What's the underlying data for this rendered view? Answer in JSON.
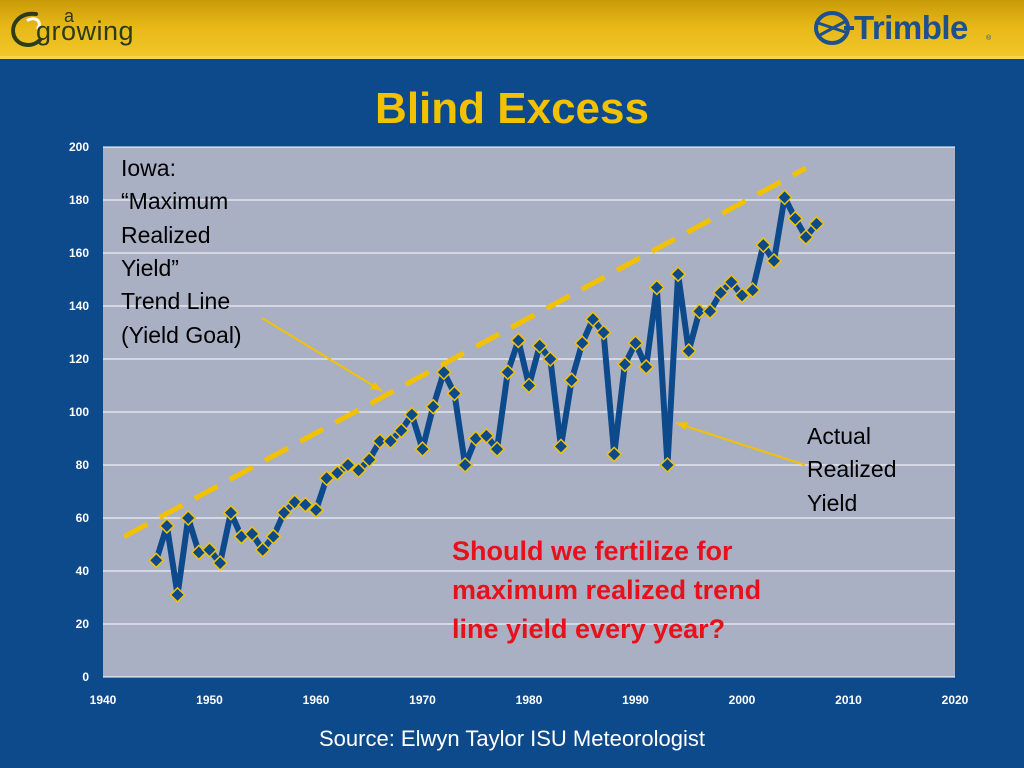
{
  "logos": {
    "left_a": "a",
    "left_word": "growing",
    "right_word": "Trimble",
    "right_reg": "®",
    "left_icon": "swirl-logo-icon",
    "right_icon": "globe-logo-icon"
  },
  "title": "Blind Excess",
  "source": "Source: Elwyn Taylor ISU Meteorologist",
  "annotations": {
    "trend_lines": [
      "Iowa:",
      "“Maximum",
      "Realized",
      "Yield”",
      "Trend Line",
      "(Yield Goal)"
    ],
    "actual_lines": [
      "Actual",
      "Realized",
      "Yield"
    ],
    "question_lines": [
      "Should we fertilize for",
      "maximum realized trend",
      "line yield every year?"
    ]
  },
  "colors": {
    "background": "#0d4a8c",
    "plot_area": "#aab0c4",
    "series_line": "#0d4a8c",
    "marker_fill": "#0d4a8c",
    "marker_edge": "#f2c200",
    "trend_dash": "#f2c200",
    "title": "#f2c200",
    "question": "#e8101a"
  },
  "chart_data": {
    "type": "line",
    "xlim": [
      1940,
      2020
    ],
    "ylim": [
      0,
      200
    ],
    "x_ticks": [
      1940,
      1950,
      1960,
      1970,
      1980,
      1990,
      2000,
      2010,
      2020
    ],
    "y_ticks": [
      0,
      20,
      40,
      60,
      80,
      100,
      120,
      140,
      160,
      180,
      200
    ],
    "grid": "horizontal",
    "xlabel": "",
    "ylabel": "",
    "series": [
      {
        "style": "solid line with diamond markers",
        "x": [
          1945,
          1946,
          1947,
          1948,
          1949,
          1950,
          1951,
          1952,
          1953,
          1954,
          1955,
          1956,
          1957,
          1958,
          1959,
          1960,
          1961,
          1962,
          1963,
          1964,
          1965,
          1966,
          1967,
          1968,
          1969,
          1970,
          1971,
          1972,
          1973,
          1974,
          1975,
          1976,
          1977,
          1978,
          1979,
          1980,
          1981,
          1982,
          1983,
          1984,
          1985,
          1986,
          1987,
          1988,
          1989,
          1990,
          1991,
          1992,
          1993,
          1994,
          1995,
          1996,
          1997,
          1998,
          1999,
          2000,
          2001,
          2002,
          2003,
          2004,
          2005,
          2006,
          2007
        ],
        "y": [
          44,
          57,
          31,
          60,
          47,
          48,
          43,
          62,
          53,
          54,
          48,
          53,
          62,
          66,
          65,
          63,
          75,
          77,
          80,
          78,
          82,
          89,
          89,
          93,
          99,
          86,
          102,
          115,
          107,
          80,
          90,
          91,
          86,
          115,
          127,
          110,
          125,
          120,
          87,
          112,
          126,
          135,
          130,
          84,
          118,
          126,
          117,
          147,
          80,
          152,
          123,
          138,
          138,
          145,
          149,
          144,
          146,
          163,
          157,
          181,
          173,
          166,
          171
        ]
      },
      {
        "style": "dashed trend line",
        "x": [
          1942,
          2006
        ],
        "y": [
          53,
          192
        ]
      }
    ]
  }
}
